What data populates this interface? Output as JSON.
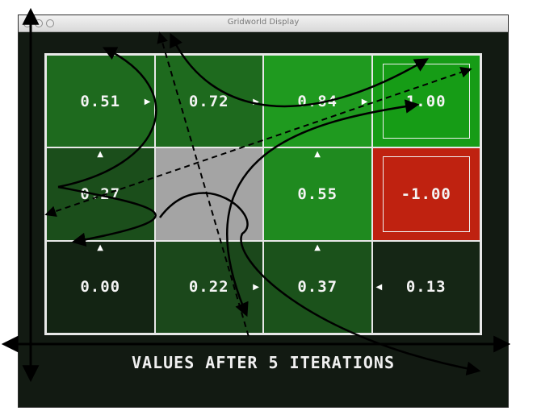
{
  "window": {
    "title": "Gridworld Display"
  },
  "grid": {
    "rows": [
      [
        {
          "value": "0.51",
          "color": "#1e6a1e",
          "arrow": "right"
        },
        {
          "value": "0.72",
          "color": "#1e6a1e",
          "arrow": "right"
        },
        {
          "value": "0.84",
          "color": "#1f9a1f",
          "arrow": "right"
        },
        {
          "value": "1.00",
          "color": "#169c16",
          "arrow": "",
          "terminal": true
        }
      ],
      [
        {
          "value": "0.27",
          "color": "#1b4e1b",
          "arrow": "up"
        },
        {
          "value": "",
          "color": "#a4a4a4",
          "arrow": "",
          "wall": true
        },
        {
          "value": "0.55",
          "color": "#1f8a1f",
          "arrow": "up"
        },
        {
          "value": "-1.00",
          "color": "#bf2210",
          "arrow": "",
          "terminal": true
        }
      ],
      [
        {
          "value": "0.00",
          "color": "#132413",
          "arrow": "up"
        },
        {
          "value": "0.22",
          "color": "#1b481b",
          "arrow": "right"
        },
        {
          "value": "0.37",
          "color": "#1b521b",
          "arrow": "up"
        },
        {
          "value": "0.13",
          "color": "#152615",
          "arrow": "left"
        }
      ]
    ]
  },
  "footer": {
    "label": "VALUES AFTER 5 ITERATIONS"
  }
}
